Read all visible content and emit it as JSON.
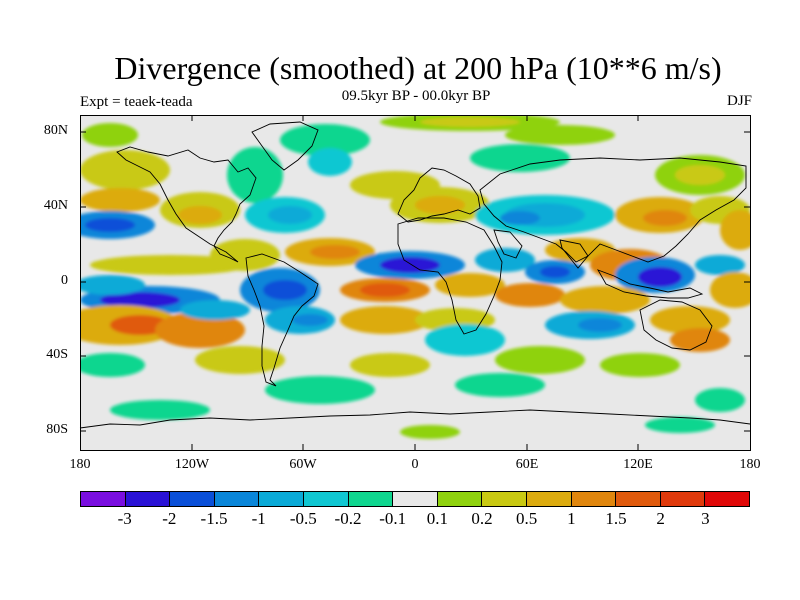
{
  "title": "Divergence (smoothed) at 200 hPa (10**6 m/s)",
  "expt_label": "Expt = teaek-teada",
  "period_label": "09.5kyr BP - 00.0kyr BP",
  "season_label": "DJF",
  "lat_labels": [
    "80N",
    "40N",
    "0",
    "40S",
    "80S"
  ],
  "lon_labels": [
    "180",
    "120W",
    "60W",
    "0",
    "60E",
    "120E",
    "180"
  ],
  "colorbar": {
    "colors": [
      "#7a0ee0",
      "#2a12d6",
      "#0a4fd8",
      "#0a86d9",
      "#0aaad7",
      "#10c7d2",
      "#0fd68f",
      "#e8e8e8",
      "#8fd20e",
      "#c9c912",
      "#dcab0f",
      "#e0860d",
      "#e05a0c",
      "#e03a0c",
      "#e00808"
    ],
    "labels": [
      "-3",
      "-2",
      "-1.5",
      "-1",
      "-0.5",
      "-0.2",
      "-0.1",
      "0.1",
      "0.2",
      "0.5",
      "1",
      "1.5",
      "2",
      "3"
    ]
  }
}
